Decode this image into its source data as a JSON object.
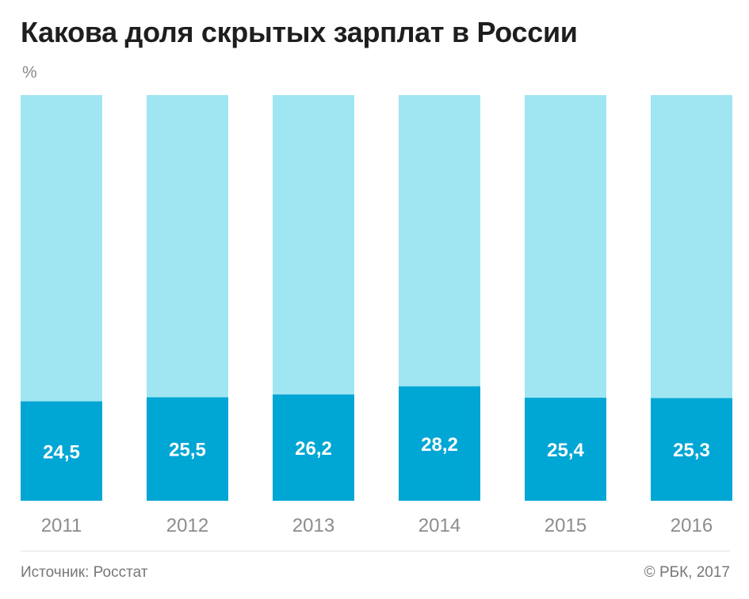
{
  "header": {
    "title": "Какова доля скрытых зарплат в России",
    "unit": "%"
  },
  "footer": {
    "source": "Источник: Росстат",
    "copyright": "© РБК, 2017"
  },
  "colors": {
    "bar_background": "#a0e6f2",
    "bar_value": "#00a6d4",
    "value_text": "#ffffff",
    "axis_text": "#8c8c8c"
  },
  "chart_data": {
    "type": "bar",
    "stacked_against_total": true,
    "total": 100,
    "title": "Какова доля скрытых зарплат в России",
    "ylabel": "%",
    "xlabel": "",
    "ylim": [
      0,
      100
    ],
    "grid": false,
    "categories": [
      "2011",
      "2012",
      "2013",
      "2014",
      "2015",
      "2016"
    ],
    "values": [
      24.5,
      25.5,
      26.2,
      28.2,
      25.4,
      25.3
    ],
    "value_labels": [
      "24,5",
      "25,5",
      "26,2",
      "28,2",
      "25,4",
      "25,3"
    ]
  }
}
